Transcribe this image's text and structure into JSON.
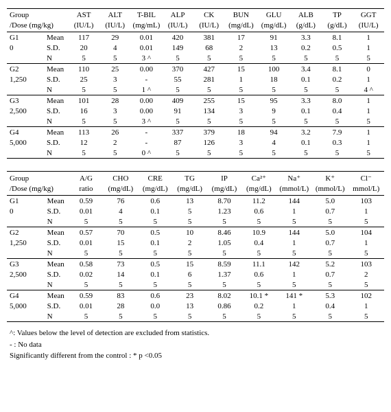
{
  "table1": {
    "header_line1": [
      "Group",
      "AST",
      "ALT",
      "T-BIL",
      "ALP",
      "CK",
      "BUN",
      "GLU",
      "ALB",
      "TP",
      "GGT"
    ],
    "header_line2": [
      "/Dose (mg/kg)",
      "(IU/L)",
      "(IU/L)",
      "(mg/mL)",
      "(IU/L)",
      "(IU/L)",
      "(mg/dL)",
      "(mg/dL)",
      "(g/dL)",
      "(g/dL)",
      "(IU/L)"
    ],
    "groups": [
      {
        "name1": "G1",
        "name2": "0",
        "rows": [
          [
            "Mean",
            "117",
            "29",
            "0.01",
            "420",
            "381",
            "17",
            "91",
            "3.3",
            "8.1",
            "1"
          ],
          [
            "S.D.",
            "20",
            "4",
            "0.01",
            "149",
            "68",
            "2",
            "13",
            "0.2",
            "0.5",
            "1"
          ],
          [
            "N",
            "5",
            "5",
            "3 ^",
            "5",
            "5",
            "5",
            "5",
            "5",
            "5",
            "5"
          ]
        ]
      },
      {
        "name1": "G2",
        "name2": "1,250",
        "rows": [
          [
            "Mean",
            "110",
            "25",
            "0.00",
            "370",
            "427",
            "15",
            "100",
            "3.4",
            "8.1",
            "0"
          ],
          [
            "S.D.",
            "25",
            "3",
            "-",
            "55",
            "281",
            "1",
            "18",
            "0.1",
            "0.2",
            "1"
          ],
          [
            "N",
            "5",
            "5",
            "1 ^",
            "5",
            "5",
            "5",
            "5",
            "5",
            "5",
            "4 ^"
          ]
        ]
      },
      {
        "name1": "G3",
        "name2": "2,500",
        "rows": [
          [
            "Mean",
            "101",
            "28",
            "0.00",
            "409",
            "255",
            "15",
            "95",
            "3.3",
            "8.0",
            "1"
          ],
          [
            "S.D.",
            "16",
            "3",
            "0.00",
            "91",
            "134",
            "3",
            "9",
            "0.1",
            "0.4",
            "1"
          ],
          [
            "N",
            "5",
            "5",
            "3 ^",
            "5",
            "5",
            "5",
            "5",
            "5",
            "5",
            "5"
          ]
        ]
      },
      {
        "name1": "G4",
        "name2": "5,000",
        "rows": [
          [
            "Mean",
            "113",
            "26",
            "-",
            "337",
            "379",
            "18",
            "94",
            "3.2",
            "7.9",
            "1"
          ],
          [
            "S.D.",
            "12",
            "2",
            "-",
            "87",
            "126",
            "3",
            "4",
            "0.1",
            "0.3",
            "1"
          ],
          [
            "N",
            "5",
            "5",
            "0 ^",
            "5",
            "5",
            "5",
            "5",
            "5",
            "5",
            "5"
          ]
        ]
      }
    ]
  },
  "table2": {
    "header_line1": [
      "Group",
      "A/G",
      "CHO",
      "CRE",
      "TG",
      "IP",
      "Ca²⁺",
      "Na⁺",
      "K⁺",
      "Cl⁻"
    ],
    "header_line2": [
      "/Dose (mg/kg)",
      "ratio",
      "(mg/dL)",
      "(mg/dL)",
      "(mg/dL)",
      "(mg/dL)",
      "(mg/dL)",
      "(mmol/L)",
      "(mmol/L)",
      "mmol/L)"
    ],
    "groups": [
      {
        "name1": "G1",
        "name2": "0",
        "rows": [
          [
            "Mean",
            "0.59",
            "76",
            "0.6",
            "13",
            "8.70",
            "11.2",
            "144",
            "5.0",
            "103"
          ],
          [
            "S.D.",
            "0.01",
            "4",
            "0.1",
            "5",
            "1.23",
            "0.6",
            "1",
            "0.7",
            "1"
          ],
          [
            "N",
            "5",
            "5",
            "5",
            "5",
            "5",
            "5",
            "5",
            "5",
            "5"
          ]
        ]
      },
      {
        "name1": "G2",
        "name2": "1,250",
        "rows": [
          [
            "Mean",
            "0.57",
            "70",
            "0.5",
            "10",
            "8.46",
            "10.9",
            "144",
            "5.0",
            "104"
          ],
          [
            "S.D.",
            "0.01",
            "15",
            "0.1",
            "2",
            "1.05",
            "0.4",
            "1",
            "0.7",
            "1"
          ],
          [
            "N",
            "5",
            "5",
            "5",
            "5",
            "5",
            "5",
            "5",
            "5",
            "5"
          ]
        ]
      },
      {
        "name1": "G3",
        "name2": "2,500",
        "rows": [
          [
            "Mean",
            "0.58",
            "73",
            "0.5",
            "15",
            "8.59",
            "11.1",
            "142",
            "5.2",
            "103"
          ],
          [
            "S.D.",
            "0.02",
            "14",
            "0.1",
            "6",
            "1.37",
            "0.6",
            "1",
            "0.7",
            "2"
          ],
          [
            "N",
            "5",
            "5",
            "5",
            "5",
            "5",
            "5",
            "5",
            "5",
            "5"
          ]
        ]
      },
      {
        "name1": "G4",
        "name2": "5,000",
        "rows": [
          [
            "Mean",
            "0.59",
            "83",
            "0.6",
            "23",
            "8.02",
            "10.1 *",
            "141 *",
            "5.3",
            "102"
          ],
          [
            "S.D.",
            "0.01",
            "28",
            "0.0",
            "13",
            "0.86",
            "0.2",
            "1",
            "0.4",
            "1"
          ],
          [
            "N",
            "5",
            "5",
            "5",
            "5",
            "5",
            "5",
            "5",
            "5",
            "5"
          ]
        ]
      }
    ]
  },
  "footnotes": {
    "f1": "^: Values below the level of detection are excluded from statistics.",
    "f2": "- : No data",
    "f3": " Significantly different from the control :  * p <0.05"
  }
}
